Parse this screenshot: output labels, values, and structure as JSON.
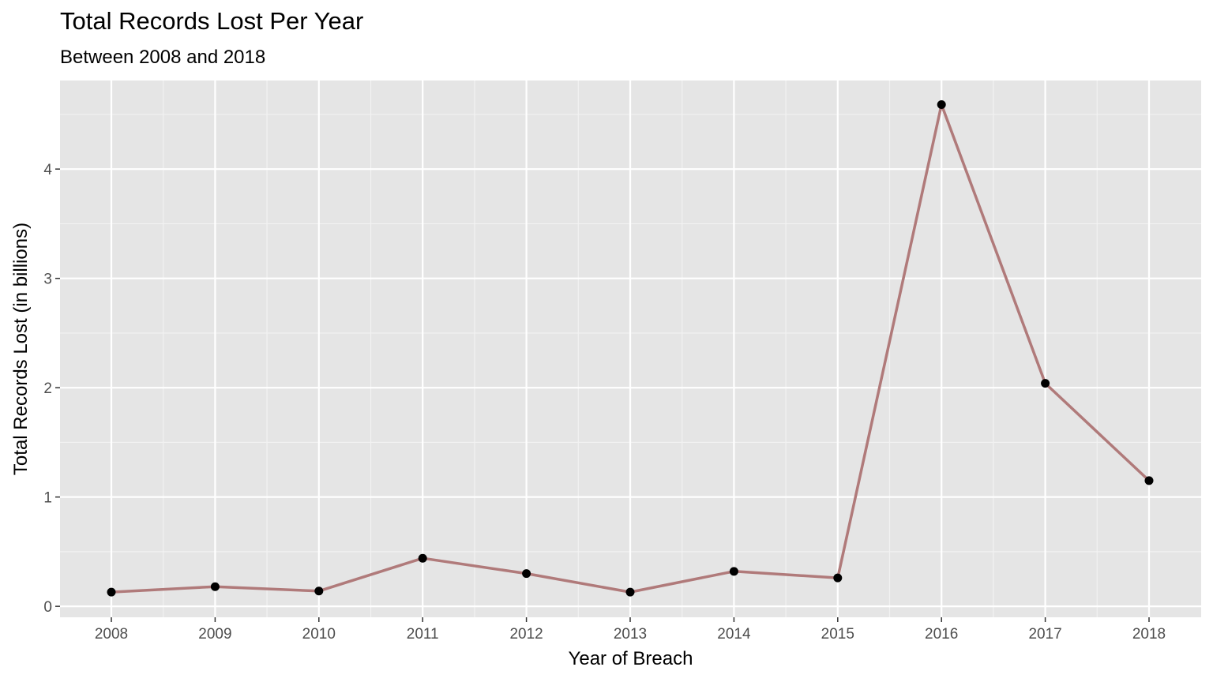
{
  "chart_data": {
    "type": "line",
    "title": "Total Records Lost Per Year",
    "subtitle": "Between 2008 and 2018",
    "xlabel": "Year of Breach",
    "ylabel": "Total Records Lost (in billions)",
    "x": [
      "2008",
      "2009",
      "2010",
      "2011",
      "2012",
      "2013",
      "2014",
      "2015",
      "2016",
      "2017",
      "2018"
    ],
    "values": [
      0.13,
      0.18,
      0.14,
      0.44,
      0.3,
      0.13,
      0.32,
      0.26,
      4.59,
      2.04,
      1.15
    ],
    "ylim": [
      -0.1,
      4.81
    ],
    "yticks": [
      "0",
      "1",
      "2",
      "3",
      "4"
    ],
    "line_color": "#b07a7a",
    "point_color": "#000000",
    "panel_color": "#e5e5e5",
    "grid": true
  }
}
